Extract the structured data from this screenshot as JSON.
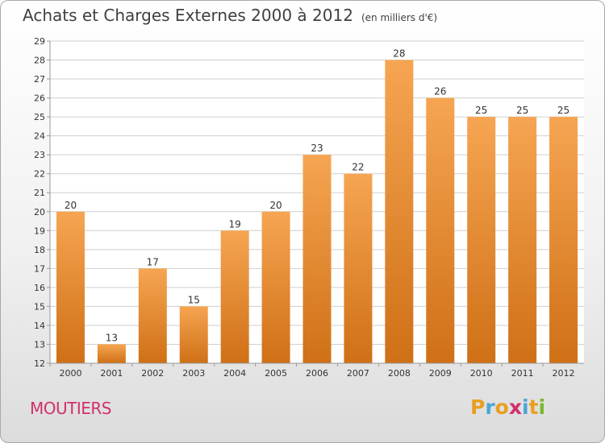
{
  "title": "Achats et Charges Externes 2000 à 2012",
  "unit_note": "(en milliers d'€)",
  "commune": "MOUTIERS",
  "logo": {
    "text": "Proxiti",
    "letters": [
      {
        "ch": "P",
        "color": "#e8a020"
      },
      {
        "ch": "r",
        "color": "#4aa6d8"
      },
      {
        "ch": "o",
        "color": "#e8a020"
      },
      {
        "ch": "x",
        "color": "#d0306c"
      },
      {
        "ch": "i",
        "color": "#4aa6d8"
      },
      {
        "ch": "t",
        "color": "#e8a020"
      },
      {
        "ch": "i",
        "color": "#7ab82e"
      }
    ]
  },
  "colors": {
    "bar_top": "#f6a552",
    "bar_bottom": "#cf7016",
    "grid": "#cfcfcf",
    "axis": "#999999"
  },
  "chart_data": {
    "type": "bar",
    "title": "Achats et Charges Externes 2000 à 2012",
    "categories": [
      "2000",
      "2001",
      "2002",
      "2003",
      "2004",
      "2005",
      "2006",
      "2007",
      "2008",
      "2009",
      "2010",
      "2011",
      "2012"
    ],
    "values": [
      20,
      13,
      17,
      15,
      19,
      20,
      23,
      22,
      28,
      26,
      25,
      25,
      25
    ],
    "ylim": [
      12,
      29
    ],
    "yticks": [
      12,
      13,
      14,
      15,
      16,
      17,
      18,
      19,
      20,
      21,
      22,
      23,
      24,
      25,
      26,
      27,
      28,
      29
    ],
    "grid": true,
    "xlabel": "",
    "ylabel": ""
  }
}
